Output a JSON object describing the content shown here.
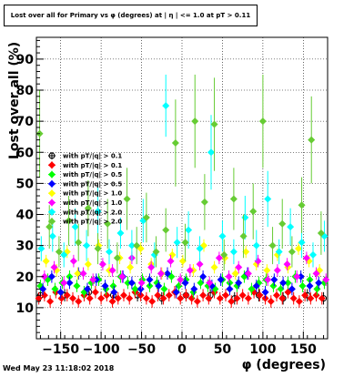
{
  "title": "Lost over all for Primary vs φ (degrees) at | η | <= 1.0 at pT > 0.11",
  "timestamp": "Wed May 23 11:18:02 2018",
  "chart_data": {
    "type": "scatter",
    "title": "Lost over all for Primary vs φ (degrees) at | η | <= 1.0 at pT > 0.11",
    "xlabel": "φ (degrees)",
    "ylabel": "Lost over all (%)",
    "xlim": [
      -180,
      180
    ],
    "ylim": [
      0,
      97
    ],
    "x_ticks": [
      -150,
      -100,
      -50,
      0,
      50,
      100,
      150
    ],
    "x_tick_labels": [
      "−150",
      "−100",
      "−50",
      "0",
      "50",
      "100",
      "150"
    ],
    "y_ticks": [
      10,
      20,
      30,
      40,
      50,
      60,
      70,
      80,
      90
    ],
    "y_tick_labels": [
      "10",
      "20",
      "30",
      "40",
      "50",
      "60",
      "70",
      "80",
      "90"
    ],
    "grid": true,
    "legend_position": "left",
    "series": [
      {
        "name": "with pT/|q| > 0.1",
        "marker": "circle-open",
        "color": "#000000",
        "x": [
          -175,
          -145,
          -115,
          -85,
          -55,
          -25,
          5,
          35,
          65,
          95,
          125,
          155,
          175
        ],
        "y": [
          14,
          14,
          15,
          14,
          14,
          13,
          14,
          14,
          13,
          14,
          13,
          14,
          13
        ]
      },
      {
        "name": "with pT/|q| > 0.1",
        "marker": "diamond",
        "color": "#ff0000",
        "x": [
          -177,
          -170,
          -163,
          -156,
          -149,
          -142,
          -135,
          -128,
          -121,
          -114,
          -107,
          -100,
          -93,
          -86,
          -79,
          -72,
          -65,
          -58,
          -51,
          -44,
          -37,
          -30,
          -23,
          -16,
          -9,
          -2,
          5,
          12,
          19,
          26,
          33,
          40,
          47,
          54,
          61,
          68,
          75,
          82,
          89,
          96,
          103,
          110,
          117,
          124,
          131,
          138,
          145,
          152,
          159,
          166,
          173
        ],
        "y": [
          13,
          14,
          12,
          15,
          13,
          14,
          13,
          12,
          14,
          13,
          15,
          13,
          14,
          12,
          13,
          14,
          13,
          15,
          14,
          13,
          12,
          14,
          13,
          14,
          15,
          13,
          14,
          13,
          12,
          14,
          13,
          15,
          13,
          14,
          12,
          13,
          14,
          13,
          15,
          14,
          13,
          12,
          14,
          13,
          15,
          13,
          12,
          14,
          13,
          14,
          13
        ]
      },
      {
        "name": "with pT/|q| > 0.5",
        "marker": "diamond",
        "color": "#00ff00",
        "x": [
          -175,
          -166,
          -157,
          -148,
          -139,
          -130,
          -121,
          -112,
          -103,
          -94,
          -85,
          -76,
          -67,
          -58,
          -49,
          -40,
          -31,
          -22,
          -13,
          -4,
          5,
          14,
          23,
          32,
          41,
          50,
          59,
          68,
          77,
          86,
          95,
          104,
          113,
          122,
          131,
          140,
          149,
          158,
          167,
          176
        ],
        "y": [
          17,
          19,
          16,
          18,
          20,
          17,
          15,
          18,
          19,
          16,
          17,
          20,
          18,
          16,
          19,
          17,
          18,
          16,
          20,
          17,
          19,
          15,
          18,
          17,
          16,
          19,
          18,
          17,
          20,
          16,
          18,
          19,
          17,
          16,
          18,
          20,
          17,
          19,
          16,
          18
        ]
      },
      {
        "name": "with pT/|q| > 0.5",
        "marker": "diamond",
        "color": "#0000ff",
        "x": [
          -172,
          -161,
          -150,
          -139,
          -128,
          -117,
          -106,
          -95,
          -84,
          -73,
          -62,
          -51,
          -40,
          -29,
          -18,
          -7,
          4,
          15,
          26,
          37,
          48,
          59,
          70,
          81,
          92,
          103,
          114,
          125,
          136,
          147,
          158,
          169
        ],
        "y": [
          16,
          20,
          15,
          18,
          21,
          16,
          19,
          17,
          15,
          20,
          18,
          16,
          19,
          17,
          21,
          15,
          18,
          16,
          20,
          17,
          19,
          16,
          18,
          21,
          17,
          15,
          19,
          18,
          16,
          20,
          17,
          18
        ]
      },
      {
        "name": "with pT/|q| > 1.0",
        "marker": "diamond",
        "color": "#ffff00",
        "x": [
          -168,
          -155,
          -142,
          -129,
          -116,
          -103,
          -90,
          -77,
          -64,
          -51,
          -38,
          -25,
          -12,
          1,
          14,
          27,
          40,
          53,
          66,
          79,
          92,
          105,
          118,
          131,
          144,
          157,
          170
        ],
        "y": [
          25,
          22,
          28,
          21,
          24,
          30,
          22,
          26,
          23,
          29,
          24,
          21,
          27,
          25,
          22,
          30,
          23,
          26,
          21,
          28,
          24,
          22,
          27,
          23,
          29,
          25,
          22
        ]
      },
      {
        "name": "with pT/|q| > 1.0",
        "marker": "diamond",
        "color": "#ff00ff",
        "x": [
          -170,
          -158,
          -146,
          -134,
          -122,
          -110,
          -98,
          -86,
          -74,
          -62,
          -50,
          -38,
          -26,
          -14,
          -2,
          10,
          22,
          34,
          46,
          58,
          70,
          82,
          94,
          106,
          118,
          130,
          142,
          154,
          166,
          178
        ],
        "y": [
          20,
          23,
          18,
          25,
          21,
          19,
          24,
          22,
          20,
          26,
          18,
          23,
          21,
          25,
          19,
          22,
          24,
          18,
          26,
          20,
          23,
          21,
          25,
          19,
          22,
          24,
          20,
          26,
          21,
          19
        ]
      },
      {
        "name": "with pT/|q| > 2.0",
        "marker": "diamond",
        "color": "#00ffff",
        "x": [
          -174,
          -160,
          -146,
          -132,
          -118,
          -104,
          -90,
          -76,
          -62,
          -48,
          -34,
          -20,
          -6,
          8,
          22,
          36,
          50,
          64,
          78,
          92,
          106,
          120,
          134,
          148,
          162,
          176
        ],
        "y": [
          29,
          33,
          27,
          36,
          30,
          41,
          28,
          34,
          30,
          38,
          27,
          75,
          31,
          35,
          29,
          60,
          33,
          28,
          39,
          30,
          45,
          28,
          36,
          31,
          27,
          33
        ],
        "err": [
          4,
          5,
          4,
          6,
          5,
          8,
          4,
          5,
          5,
          7,
          4,
          10,
          5,
          6,
          4,
          12,
          5,
          4,
          7,
          5,
          9,
          4,
          6,
          5,
          4,
          5
        ]
      },
      {
        "name": "with pT/|q| > 2.0",
        "marker": "diamond",
        "color": "#66cc33",
        "x": [
          -176,
          -164,
          -152,
          -140,
          -128,
          -116,
          -104,
          -92,
          -80,
          -68,
          -56,
          -44,
          -32,
          -20,
          -8,
          4,
          16,
          28,
          40,
          52,
          64,
          76,
          88,
          100,
          112,
          124,
          136,
          148,
          160,
          172
        ],
        "y": [
          66,
          36,
          28,
          38,
          31,
          42,
          29,
          37,
          26,
          45,
          30,
          39,
          28,
          35,
          63,
          31,
          70,
          44,
          69,
          27,
          45,
          33,
          41,
          70,
          30,
          37,
          28,
          43,
          64,
          34
        ],
        "err": [
          14,
          7,
          5,
          8,
          6,
          9,
          5,
          8,
          5,
          10,
          6,
          8,
          5,
          7,
          14,
          6,
          15,
          9,
          15,
          5,
          10,
          7,
          9,
          15,
          6,
          8,
          5,
          9,
          14,
          7
        ]
      }
    ]
  }
}
